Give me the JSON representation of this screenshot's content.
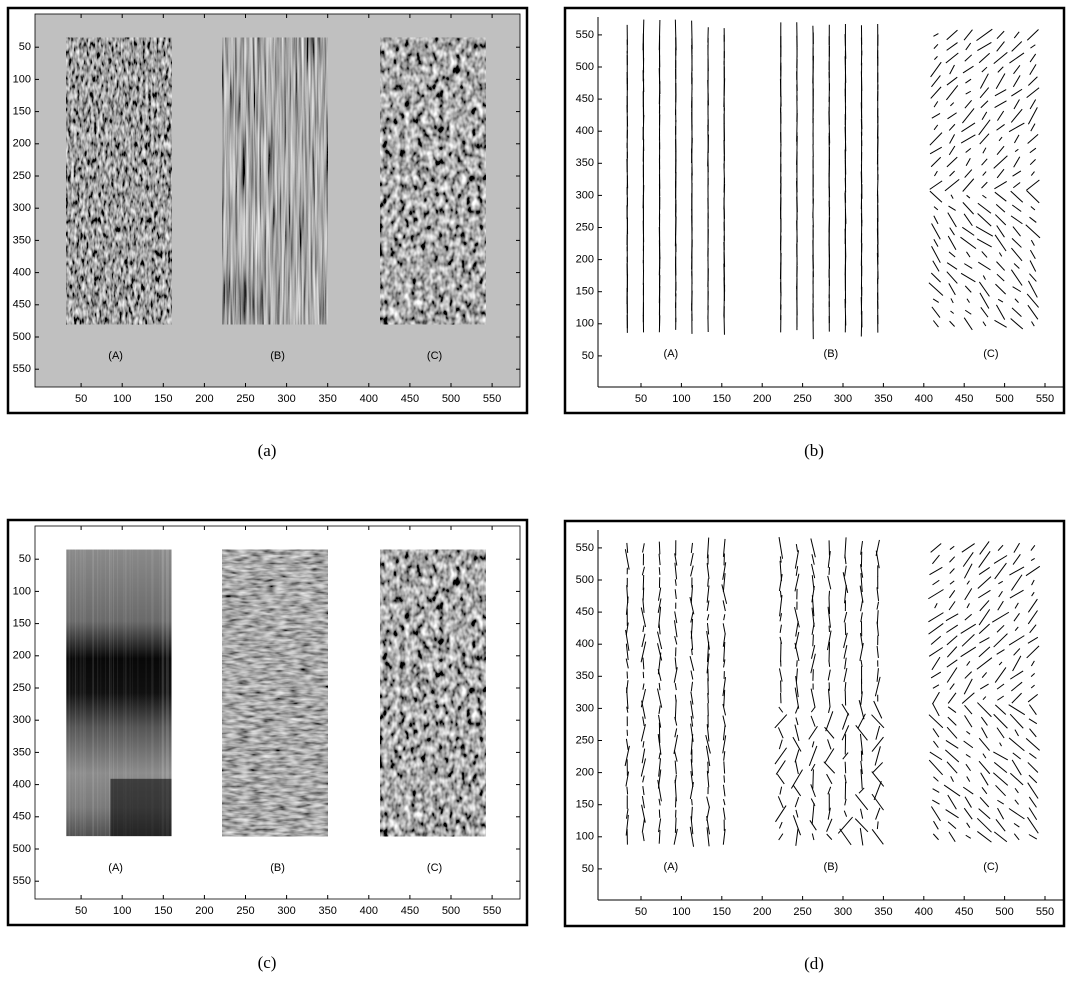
{
  "panels": [
    {
      "caption": "(a)",
      "xticks": [
        50,
        100,
        150,
        200,
        250,
        300,
        350,
        400,
        450,
        500,
        550
      ],
      "yticks": [
        50,
        100,
        150,
        200,
        250,
        300,
        350,
        400,
        450,
        500,
        550
      ],
      "labels": [
        "(A)",
        "(B)",
        "(C)"
      ]
    },
    {
      "caption": "(b)",
      "xticks": [
        50,
        100,
        150,
        200,
        250,
        300,
        350,
        400,
        450,
        500,
        550
      ],
      "yticks": [
        50,
        100,
        150,
        200,
        250,
        300,
        350,
        400,
        450,
        500,
        550
      ],
      "labels": [
        "(A)",
        "(B)",
        "(C)"
      ]
    },
    {
      "caption": "(c)",
      "xticks": [
        50,
        100,
        150,
        200,
        250,
        300,
        350,
        400,
        450,
        500,
        550
      ],
      "yticks": [
        50,
        100,
        150,
        200,
        250,
        300,
        350,
        400,
        450,
        500,
        550
      ],
      "labels": [
        "(A)",
        "(B)",
        "(C)"
      ]
    },
    {
      "caption": "(d)",
      "xticks": [
        50,
        100,
        150,
        200,
        250,
        300,
        350,
        400,
        450,
        500,
        550
      ],
      "yticks": [
        50,
        100,
        150,
        200,
        250,
        300,
        350,
        400,
        450,
        500,
        550
      ],
      "labels": [
        "(A)",
        "(B)",
        "(C)"
      ]
    }
  ]
}
